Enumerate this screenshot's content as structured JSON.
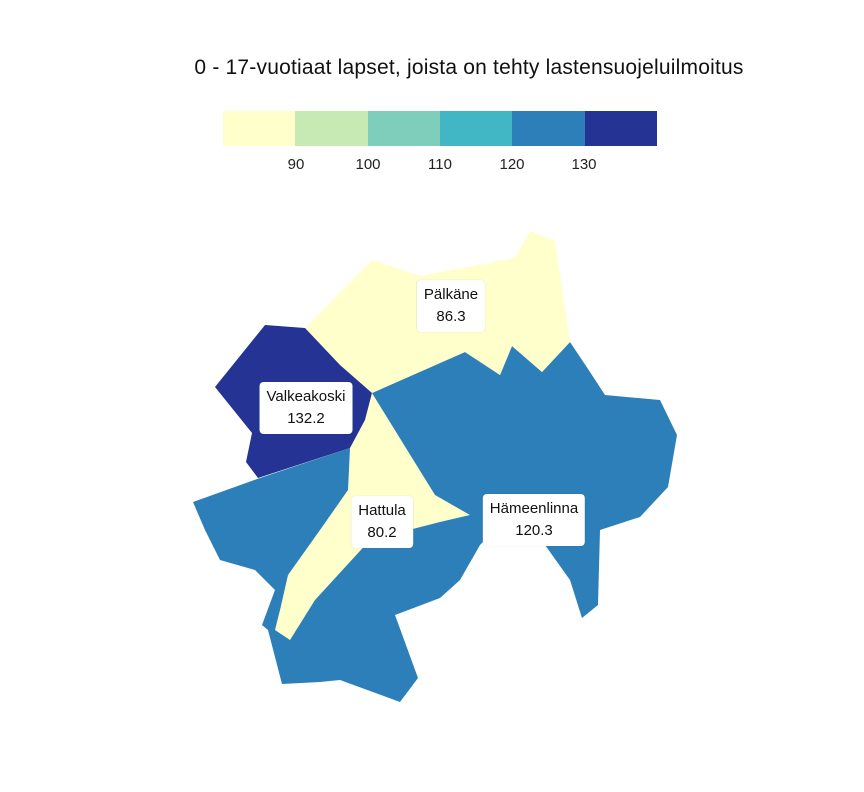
{
  "title": "0 - 17-vuotiaat lapset, joista on tehty lastensuojeluilmoitus",
  "legend": {
    "colors": [
      "#ffffcc",
      "#c7e9b4",
      "#7fcdbb",
      "#41b6c4",
      "#2c7fb8",
      "#253494"
    ],
    "ticks": [
      "90",
      "100",
      "110",
      "120",
      "130"
    ]
  },
  "regions": [
    {
      "id": "palkane",
      "name": "Pälkäne",
      "value": "86.3",
      "color": "#ffffcc"
    },
    {
      "id": "valkeakoski",
      "name": "Valkeakoski",
      "value": "132.2",
      "color": "#253494"
    },
    {
      "id": "hattula",
      "name": "Hattula",
      "value": "80.2",
      "color": "#ffffcc"
    },
    {
      "id": "hameenlinna",
      "name": "Hämeenlinna",
      "value": "120.3",
      "color": "#2c7fb8"
    }
  ]
}
